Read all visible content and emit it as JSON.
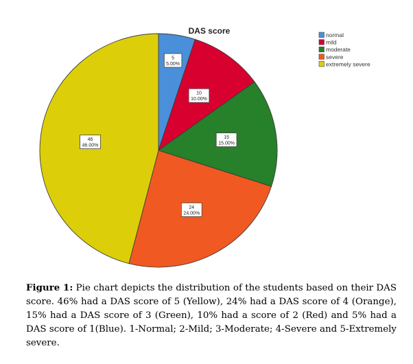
{
  "chart_data": {
    "type": "pie",
    "title": "DAS score",
    "slices": [
      {
        "name": "normal",
        "value": 5,
        "label": "5",
        "percent_label": "5.00%",
        "color": "#4a8fd9"
      },
      {
        "name": "mild",
        "value": 10,
        "label": "10",
        "percent_label": "10.00%",
        "color": "#d8002f"
      },
      {
        "name": "moderate",
        "value": 15,
        "label": "15",
        "percent_label": "15.00%",
        "color": "#27802a"
      },
      {
        "name": "severe",
        "value": 24,
        "label": "24",
        "percent_label": "24.00%",
        "color": "#f05a22"
      },
      {
        "name": "extremely severe",
        "value": 46,
        "label": "46",
        "percent_label": "46.00%",
        "color": "#dccf0a"
      }
    ],
    "start": "12 o'clock",
    "direction": "clockwise",
    "legend": {
      "position": "top-right",
      "entries": [
        "normal",
        "mild",
        "moderate",
        "severe",
        "extremely severe"
      ]
    }
  },
  "caption": {
    "label": "Figure 1:",
    "text": " Pie chart depicts the distribution of the students based on their DAS score. 46% had a DAS score of 5 (Yellow), 24% had a DAS score of 4 (Orange), 15% had a DAS score of 3 (Green), 10% had a score of 2 (Red) and 5% had a DAS score of 1(Blue). 1-Normal; 2-Mild; 3-Moderate; 4-Severe and 5-Extremely severe."
  }
}
